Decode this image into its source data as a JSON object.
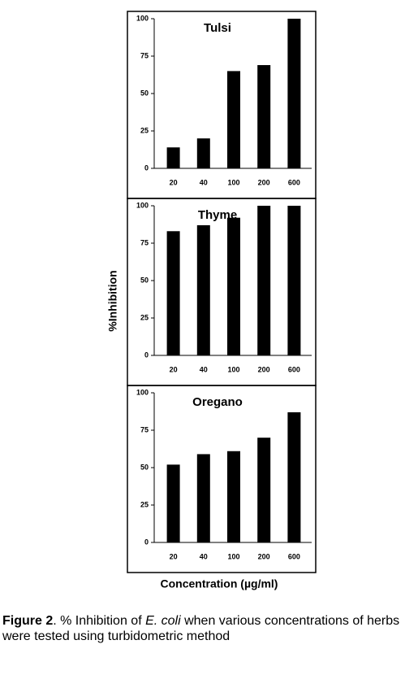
{
  "chart_data": [
    {
      "type": "bar",
      "title": "Tulsi",
      "categories": [
        "20",
        "40",
        "100",
        "200",
        "600"
      ],
      "values": [
        14,
        20,
        65,
        69,
        100
      ],
      "color": "#000000",
      "ylim": [
        0,
        100
      ],
      "yticks": [
        0,
        25,
        50,
        75,
        100
      ]
    },
    {
      "type": "bar",
      "title": "Thyme",
      "categories": [
        "20",
        "40",
        "100",
        "200",
        "600"
      ],
      "values": [
        83,
        87,
        92,
        100,
        100
      ],
      "color": "#000000",
      "ylim": [
        0,
        100
      ],
      "yticks": [
        0,
        25,
        50,
        75,
        100
      ]
    },
    {
      "type": "bar",
      "title": "Oregano",
      "categories": [
        "20",
        "40",
        "100",
        "200",
        "600"
      ],
      "values": [
        52,
        59,
        61,
        70,
        87
      ],
      "color": "#000000",
      "ylim": [
        0,
        100
      ],
      "yticks": [
        0,
        25,
        50,
        75,
        100
      ]
    }
  ],
  "y_label": "%Inhibition",
  "x_label": "Concentration (µg/ml)",
  "caption": {
    "label": "Figure 2",
    "text1": ". % Inhibition of ",
    "italic": "E. coli",
    "text2": " when various concentrations of herbs were tested using  turbidometric method"
  }
}
